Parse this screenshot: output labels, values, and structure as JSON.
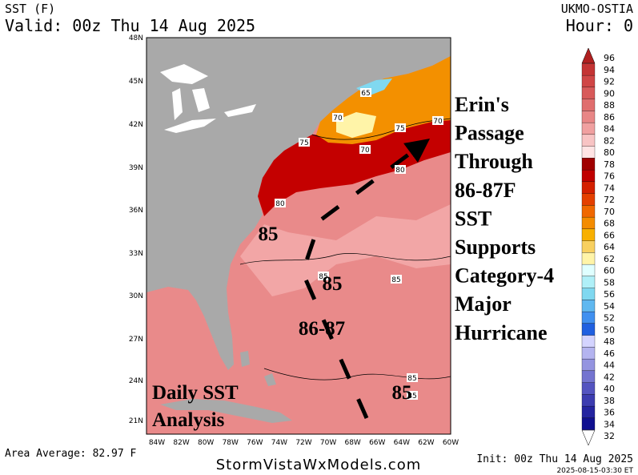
{
  "header": {
    "product": "SST (F)",
    "valid": "Valid: 00z Thu 14 Aug 2025",
    "model": "UKMO-OSTIA",
    "hour": "Hour: 0"
  },
  "map": {
    "lat_labels": [
      "48N",
      "45N",
      "42N",
      "39N",
      "36N",
      "33N",
      "30N",
      "27N",
      "24N",
      "21N"
    ],
    "lon_labels": [
      "84W",
      "82W",
      "80W",
      "78W",
      "76W",
      "74W",
      "72W",
      "70W",
      "68W",
      "66W",
      "64W",
      "62W",
      "60W"
    ],
    "contour_labels": [
      "65",
      "70",
      "75",
      "70",
      "75",
      "70",
      "80",
      "80",
      "85",
      "85",
      "85",
      "85"
    ]
  },
  "annotations": {
    "erin": [
      "Erin's",
      "Passage",
      "Through",
      "86-87F",
      "SST",
      "Supports",
      "Category-4",
      "Major",
      "Hurricane"
    ],
    "sst_labels": [
      "85",
      "85",
      "86-87",
      "85"
    ],
    "caption": [
      "Daily SST",
      "Analysis"
    ]
  },
  "colorbar": {
    "levels": [
      96,
      94,
      92,
      90,
      88,
      86,
      84,
      82,
      80,
      78,
      76,
      74,
      72,
      70,
      68,
      66,
      64,
      62,
      60,
      58,
      56,
      54,
      52,
      50,
      48,
      46,
      44,
      42,
      40,
      38,
      36,
      34,
      32
    ],
    "colors": [
      "#b02020",
      "#c43434",
      "#d04646",
      "#d85a5a",
      "#e06e6e",
      "#e88686",
      "#f0a0a0",
      "#f8c4c4",
      "#ffe4e4",
      "#a00000",
      "#c00000",
      "#d42000",
      "#e44000",
      "#f06800",
      "#f48c00",
      "#f8b000",
      "#f8d060",
      "#fff4a8",
      "#e0ffff",
      "#b0f0f8",
      "#80d8f0",
      "#60b8f0",
      "#4090f0",
      "#2060e0",
      "#d4d4ff",
      "#b4b4f0",
      "#9494e0",
      "#7474d0",
      "#5454c0",
      "#3c3cb0",
      "#2424a0",
      "#101090",
      "#ffffff"
    ]
  },
  "footer": {
    "area_average": "Area Average: 82.97 F",
    "site": "StormVistaWxModels.com",
    "init": "Init: 00z Thu 14 Aug 2025",
    "timestamp": "2025-08-15-03:30 ET"
  }
}
